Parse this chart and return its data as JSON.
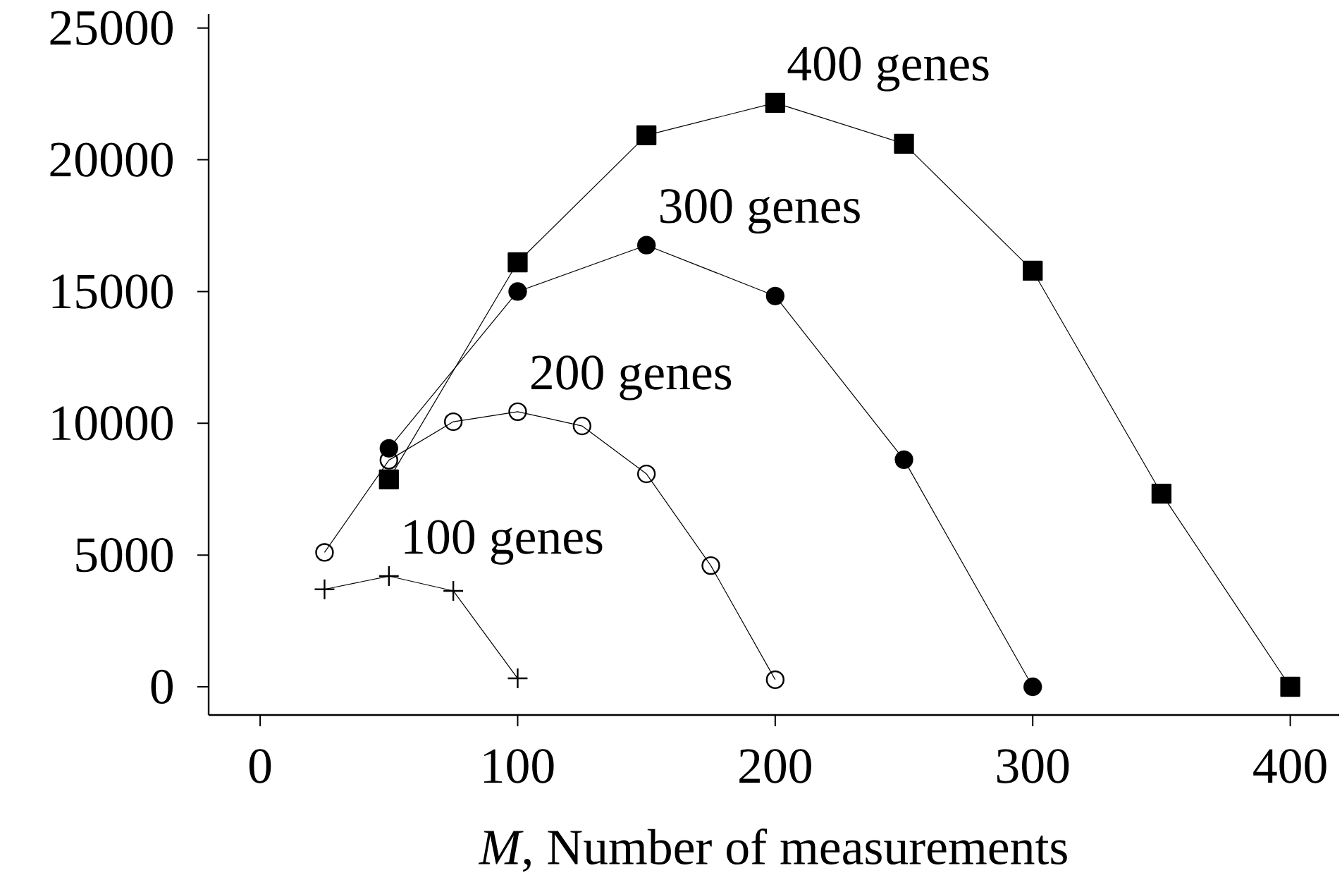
{
  "chart_data": {
    "type": "line",
    "xlabel": "*M*, Number of measurements",
    "xlim": [
      -20,
      419
    ],
    "ylim": [
      -1070,
      25530
    ],
    "xticks": [
      0,
      100,
      200,
      300,
      400
    ],
    "yticks": [
      0,
      5000,
      10000,
      15000,
      20000,
      25000
    ],
    "grid": false,
    "legend": false,
    "series": [
      {
        "name": "100 genes",
        "color": "#000000",
        "marker": "cross",
        "x": [
          25,
          50,
          75,
          100
        ],
        "values": [
          3700,
          4200,
          3640,
          320
        ]
      },
      {
        "name": "200 genes",
        "color": "#000000",
        "marker": "circle",
        "x": [
          25,
          50,
          75,
          100,
          125,
          150,
          175,
          200
        ],
        "values": [
          5100,
          8600,
          10060,
          10440,
          9900,
          8080,
          4600,
          270
        ]
      },
      {
        "name": "300 genes",
        "color": "#000000",
        "marker": "circle",
        "x": [
          50,
          100,
          150,
          200,
          250,
          300
        ],
        "values": [
          9050,
          15000,
          16760,
          14830,
          8620,
          0
        ]
      },
      {
        "name": "400 genes",
        "color": "#000000",
        "marker": "square",
        "x": [
          50,
          100,
          150,
          200,
          250,
          300,
          350,
          400
        ],
        "values": [
          7870,
          16110,
          20930,
          22160,
          20610,
          15790,
          7330,
          0
        ]
      }
    ]
  }
}
